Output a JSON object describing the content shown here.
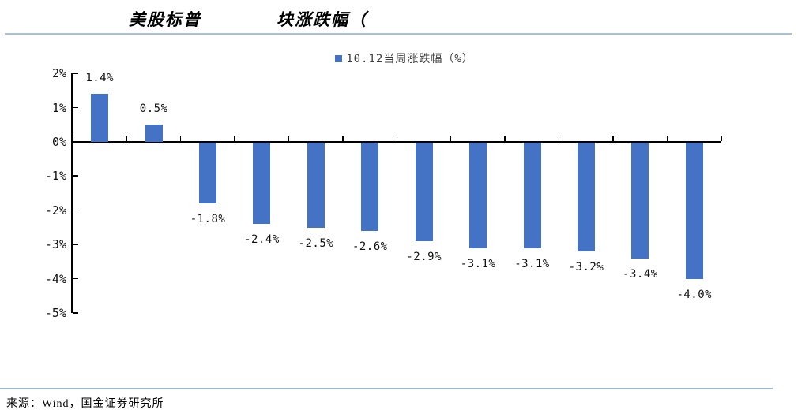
{
  "header": {
    "title_part1": "美股标普",
    "title_part2": "块涨跌幅（"
  },
  "chart_data": {
    "type": "bar",
    "title": "美股标普 块涨跌幅（",
    "legend_entries": [
      "10.12当周涨跌幅（%）"
    ],
    "legend_position": "top-center",
    "categories": [
      "",
      "",
      "",
      "",
      "",
      "",
      "",
      "",
      "",
      "",
      "",
      ""
    ],
    "values": [
      1.4,
      0.5,
      -1.8,
      -2.4,
      -2.5,
      -2.6,
      -2.9,
      -3.1,
      -3.1,
      -3.2,
      -3.4,
      -4.0
    ],
    "value_labels": [
      "1.4%",
      "0.5%",
      "-1.8%",
      "-2.4%",
      "-2.5%",
      "-2.6%",
      "-2.9%",
      "-3.1%",
      "-3.1%",
      "-3.2%",
      "-3.4%",
      "-4.0%"
    ],
    "y_tick_labels": [
      "2%",
      "1%",
      "0%",
      "-1%",
      "-2%",
      "-3%",
      "-4%",
      "-5%"
    ],
    "ylim": [
      -5,
      2
    ],
    "grid": false,
    "bar_color": "#4472C4",
    "axis_color": "#000000"
  },
  "footer": {
    "source": "来源：Wind，国金证券研究所"
  }
}
